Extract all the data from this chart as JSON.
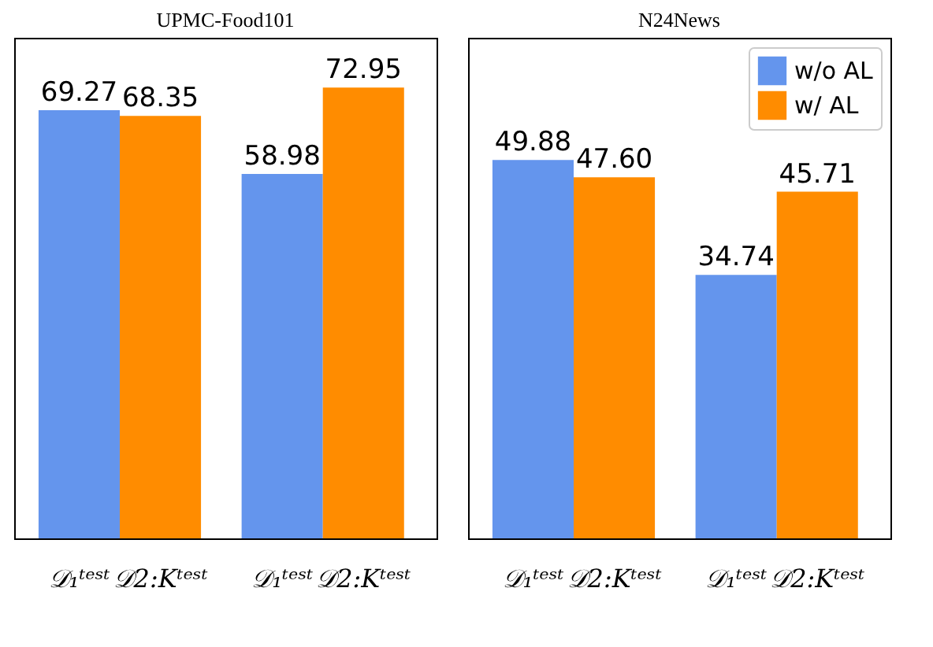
{
  "chart_data": [
    {
      "type": "bar",
      "title": "UPMC-Food101",
      "categories": [
        "𝒟₁ᵗᵉˢᵗ",
        "𝒟2:Kᵗᵉˢᵗ",
        "𝒟₁ᵗᵉˢᵗ",
        "𝒟2:Kᵗᵉˢᵗ"
      ],
      "series": [
        {
          "color": "#6495ed",
          "values": [
            69.27,
            null,
            58.98,
            null
          ],
          "value_labels": [
            "69.27",
            null,
            "58.98",
            null
          ]
        },
        {
          "color": "#ff8c00",
          "values": [
            null,
            68.35,
            null,
            72.95
          ],
          "value_labels": [
            null,
            "68.35",
            null,
            "72.95"
          ]
        }
      ],
      "ylim": [
        0,
        81
      ],
      "tick_labels": "x",
      "legend": false
    },
    {
      "type": "bar",
      "title": "N24News",
      "categories": [
        "𝒟₁ᵗᵉˢᵗ",
        "𝒟2:Kᵗᵉˢᵗ",
        "𝒟₁ᵗᵉˢᵗ",
        "𝒟2:Kᵗᵉˢᵗ"
      ],
      "series": [
        {
          "name": "w/o AL",
          "color": "#6495ed",
          "values": [
            49.88,
            null,
            34.74,
            null
          ],
          "value_labels": [
            "49.88",
            null,
            "34.74",
            null
          ]
        },
        {
          "name": "w/ AL",
          "color": "#ff8c00",
          "values": [
            null,
            47.6,
            null,
            45.71
          ],
          "value_labels": [
            null,
            "47.60",
            null,
            "45.71"
          ]
        }
      ],
      "ylim": [
        0,
        66
      ],
      "tick_labels": "x",
      "legend": "top right"
    }
  ]
}
